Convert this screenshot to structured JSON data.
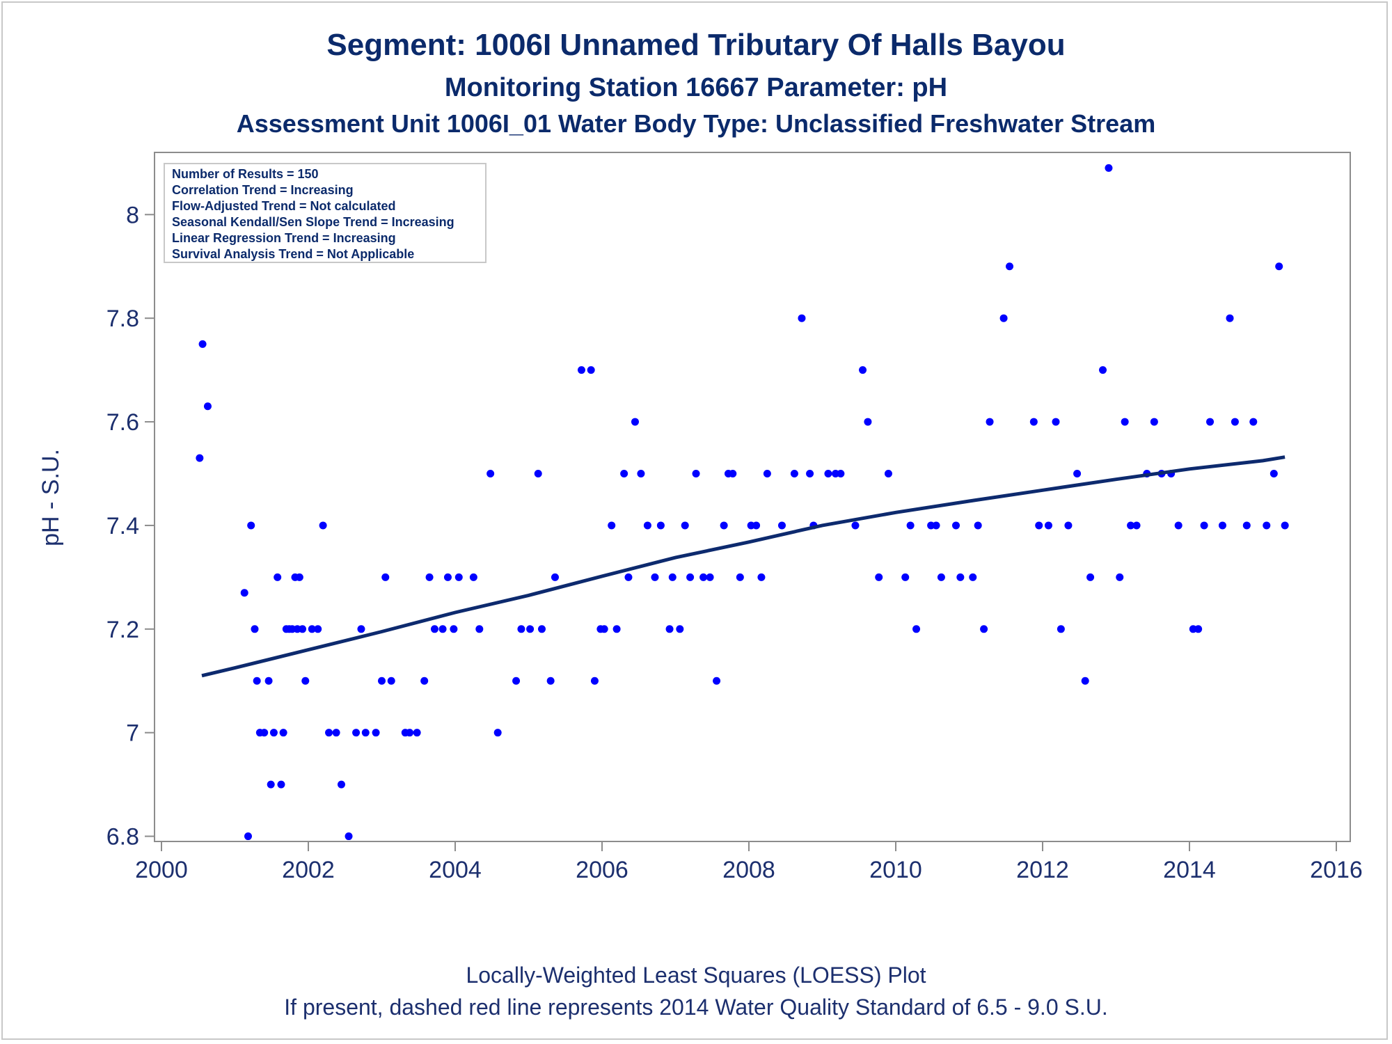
{
  "colors": {
    "points": "#0000ff",
    "trend": "#0d2a6e",
    "text": "#0b2a6b",
    "axis": "#8c8c8c"
  },
  "chart_data": {
    "type": "scatter",
    "title": "Segment: 1006I  Unnamed Tributary Of Halls Bayou",
    "subtitle": "Monitoring Station 16667 Parameter: pH",
    "subtitle2": "Assessment Unit 1006I_01   Water Body Type: Unclassified Freshwater Stream",
    "ylabel": "pH - S.U.",
    "xlabel": "",
    "xlim": [
      2000,
      2016
    ],
    "ylim": [
      6.79,
      8.12
    ],
    "xticks": [
      2000,
      2002,
      2004,
      2006,
      2008,
      2010,
      2012,
      2014,
      2016
    ],
    "yticks": [
      6.8,
      7,
      7.2,
      7.4,
      7.6,
      7.8,
      8
    ],
    "ytick_labels": [
      "6.8",
      "7",
      "7.2",
      "7.4",
      "7.6",
      "7.8",
      "8"
    ],
    "legend_position": "top-left",
    "stats": [
      "Number of Results = 150",
      "Correlation Trend = Increasing",
      "Flow-Adjusted Trend = Not calculated",
      "Seasonal Kendall/Sen Slope Trend = Increasing",
      "Linear Regression Trend = Increasing",
      "Survival Analysis Trend = Not Applicable"
    ],
    "footnote1": "Locally-Weighted Least Squares (LOESS) Plot",
    "footnote2": "If present, dashed red line represents 2014 Water Quality Standard of 6.5 - 9.0 S.U.",
    "points": [
      [
        2000.52,
        7.53
      ],
      [
        2000.56,
        7.75
      ],
      [
        2000.63,
        7.63
      ],
      [
        2001.13,
        7.27
      ],
      [
        2001.18,
        6.8
      ],
      [
        2001.22,
        7.4
      ],
      [
        2001.27,
        7.2
      ],
      [
        2001.3,
        7.1
      ],
      [
        2001.34,
        7.0
      ],
      [
        2001.4,
        7.0
      ],
      [
        2001.46,
        7.1
      ],
      [
        2001.49,
        6.9
      ],
      [
        2001.53,
        7.0
      ],
      [
        2001.58,
        7.3
      ],
      [
        2001.63,
        6.9
      ],
      [
        2001.66,
        7.0
      ],
      [
        2001.7,
        7.2
      ],
      [
        2001.74,
        7.2
      ],
      [
        2001.78,
        7.2
      ],
      [
        2001.82,
        7.3
      ],
      [
        2001.85,
        7.2
      ],
      [
        2001.88,
        7.3
      ],
      [
        2001.92,
        7.2
      ],
      [
        2001.96,
        7.1
      ],
      [
        2002.05,
        7.2
      ],
      [
        2002.13,
        7.2
      ],
      [
        2002.2,
        7.4
      ],
      [
        2002.28,
        7.0
      ],
      [
        2002.38,
        7.0
      ],
      [
        2002.45,
        6.9
      ],
      [
        2002.55,
        6.8
      ],
      [
        2002.65,
        7.0
      ],
      [
        2002.72,
        7.2
      ],
      [
        2002.78,
        7.0
      ],
      [
        2002.92,
        7.0
      ],
      [
        2003.0,
        7.1
      ],
      [
        2003.05,
        7.3
      ],
      [
        2003.13,
        7.1
      ],
      [
        2003.32,
        7.0
      ],
      [
        2003.38,
        7.0
      ],
      [
        2003.48,
        7.0
      ],
      [
        2003.58,
        7.1
      ],
      [
        2003.65,
        7.3
      ],
      [
        2003.72,
        7.2
      ],
      [
        2003.83,
        7.2
      ],
      [
        2003.9,
        7.3
      ],
      [
        2003.98,
        7.2
      ],
      [
        2004.05,
        7.3
      ],
      [
        2004.25,
        7.3
      ],
      [
        2004.33,
        7.2
      ],
      [
        2004.48,
        7.5
      ],
      [
        2004.58,
        7.0
      ],
      [
        2004.83,
        7.1
      ],
      [
        2004.9,
        7.2
      ],
      [
        2005.02,
        7.2
      ],
      [
        2005.13,
        7.5
      ],
      [
        2005.18,
        7.2
      ],
      [
        2005.3,
        7.1
      ],
      [
        2005.36,
        7.3
      ],
      [
        2005.72,
        7.7
      ],
      [
        2005.85,
        7.7
      ],
      [
        2005.9,
        7.1
      ],
      [
        2005.98,
        7.2
      ],
      [
        2006.03,
        7.2
      ],
      [
        2006.13,
        7.4
      ],
      [
        2006.2,
        7.2
      ],
      [
        2006.3,
        7.5
      ],
      [
        2006.36,
        7.3
      ],
      [
        2006.45,
        7.6
      ],
      [
        2006.53,
        7.5
      ],
      [
        2006.62,
        7.4
      ],
      [
        2006.72,
        7.3
      ],
      [
        2006.8,
        7.4
      ],
      [
        2006.92,
        7.2
      ],
      [
        2006.96,
        7.3
      ],
      [
        2007.06,
        7.2
      ],
      [
        2007.13,
        7.4
      ],
      [
        2007.2,
        7.3
      ],
      [
        2007.28,
        7.5
      ],
      [
        2007.38,
        7.3
      ],
      [
        2007.47,
        7.3
      ],
      [
        2007.56,
        7.1
      ],
      [
        2007.66,
        7.4
      ],
      [
        2007.72,
        7.5
      ],
      [
        2007.78,
        7.5
      ],
      [
        2007.88,
        7.3
      ],
      [
        2008.03,
        7.4
      ],
      [
        2008.1,
        7.4
      ],
      [
        2008.17,
        7.3
      ],
      [
        2008.25,
        7.5
      ],
      [
        2008.45,
        7.4
      ],
      [
        2008.62,
        7.5
      ],
      [
        2008.72,
        7.8
      ],
      [
        2008.83,
        7.5
      ],
      [
        2008.88,
        7.4
      ],
      [
        2009.08,
        7.5
      ],
      [
        2009.18,
        7.5
      ],
      [
        2009.25,
        7.5
      ],
      [
        2009.45,
        7.4
      ],
      [
        2009.55,
        7.7
      ],
      [
        2009.62,
        7.6
      ],
      [
        2009.77,
        7.3
      ],
      [
        2009.9,
        7.5
      ],
      [
        2010.13,
        7.3
      ],
      [
        2010.2,
        7.4
      ],
      [
        2010.28,
        7.2
      ],
      [
        2010.48,
        7.4
      ],
      [
        2010.55,
        7.4
      ],
      [
        2010.62,
        7.3
      ],
      [
        2010.82,
        7.4
      ],
      [
        2010.88,
        7.3
      ],
      [
        2011.05,
        7.3
      ],
      [
        2011.12,
        7.4
      ],
      [
        2011.2,
        7.2
      ],
      [
        2011.28,
        7.6
      ],
      [
        2011.47,
        7.8
      ],
      [
        2011.55,
        7.9
      ],
      [
        2011.88,
        7.6
      ],
      [
        2011.95,
        7.4
      ],
      [
        2012.08,
        7.4
      ],
      [
        2012.18,
        7.6
      ],
      [
        2012.25,
        7.2
      ],
      [
        2012.35,
        7.4
      ],
      [
        2012.47,
        7.5
      ],
      [
        2012.58,
        7.1
      ],
      [
        2012.65,
        7.3
      ],
      [
        2012.82,
        7.7
      ],
      [
        2012.9,
        8.09
      ],
      [
        2013.05,
        7.3
      ],
      [
        2013.12,
        7.6
      ],
      [
        2013.2,
        7.4
      ],
      [
        2013.28,
        7.4
      ],
      [
        2013.42,
        7.5
      ],
      [
        2013.52,
        7.6
      ],
      [
        2013.62,
        7.5
      ],
      [
        2013.75,
        7.5
      ],
      [
        2013.85,
        7.4
      ],
      [
        2014.05,
        7.2
      ],
      [
        2014.12,
        7.2
      ],
      [
        2014.2,
        7.4
      ],
      [
        2014.28,
        7.6
      ],
      [
        2014.45,
        7.4
      ],
      [
        2014.55,
        7.8
      ],
      [
        2014.62,
        7.6
      ],
      [
        2014.78,
        7.4
      ],
      [
        2014.87,
        7.6
      ],
      [
        2015.05,
        7.4
      ],
      [
        2015.15,
        7.5
      ],
      [
        2015.22,
        7.9
      ],
      [
        2015.3,
        7.4
      ]
    ],
    "trend": [
      [
        2000.55,
        7.11
      ],
      [
        2001.0,
        7.125
      ],
      [
        2002.0,
        7.16
      ],
      [
        2003.0,
        7.195
      ],
      [
        2004.0,
        7.232
      ],
      [
        2005.0,
        7.265
      ],
      [
        2006.0,
        7.302
      ],
      [
        2007.0,
        7.338
      ],
      [
        2008.0,
        7.368
      ],
      [
        2009.0,
        7.4
      ],
      [
        2010.0,
        7.425
      ],
      [
        2011.0,
        7.447
      ],
      [
        2012.0,
        7.468
      ],
      [
        2013.0,
        7.489
      ],
      [
        2014.0,
        7.509
      ],
      [
        2015.0,
        7.525
      ],
      [
        2015.3,
        7.532
      ]
    ]
  }
}
